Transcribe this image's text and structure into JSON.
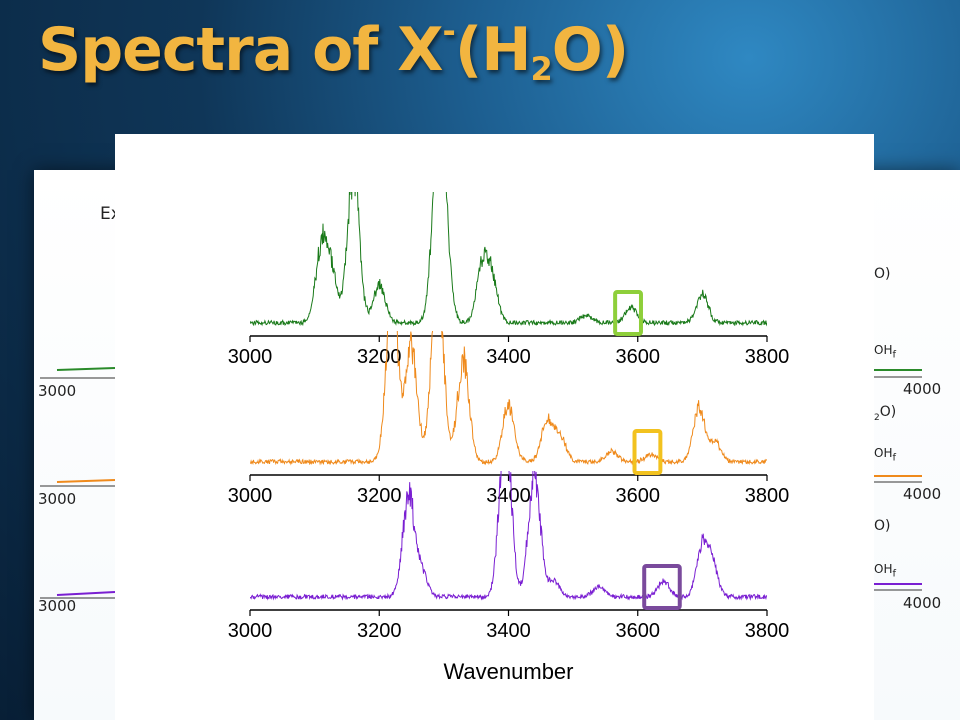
{
  "slide": {
    "title_prefix": "Spectra of X",
    "title_sup": "-",
    "title_mid": "(H",
    "title_sub": "2",
    "title_suffix": "O)"
  },
  "background": {
    "ex_text": "Ex",
    "oh_label": "OH",
    "oh_sub": "f",
    "label_o": "O)",
    "label_2o_sub": "2",
    "label_2o": "O)",
    "left_ticks": [
      "3000",
      "3000",
      "3000"
    ],
    "right_ticks": [
      "4000",
      "4000",
      "4000"
    ]
  },
  "chart_data": {
    "type": "line",
    "xlabel": "Wavenumber",
    "xlim": [
      3000,
      3800
    ],
    "xticks": [
      3000,
      3200,
      3400,
      3600,
      3800
    ],
    "grid": false,
    "panels": [
      {
        "color": "#1a7a1a",
        "box_color": "#8ecf3a",
        "highlight_x": [
          3565,
          3605
        ],
        "peaks": [
          [
            3110,
            0.55
          ],
          [
            3125,
            0.4
          ],
          [
            3160,
            1.2
          ],
          [
            3200,
            0.3
          ],
          [
            3290,
            1.15
          ],
          [
            3300,
            0.75
          ],
          [
            3360,
            0.45
          ],
          [
            3375,
            0.3
          ],
          [
            3520,
            0.06
          ],
          [
            3590,
            0.12
          ],
          [
            3700,
            0.22
          ]
        ],
        "ticks": [
          "3000",
          "3200",
          "3400",
          "3600",
          "3800"
        ]
      },
      {
        "color": "#ef8a1c",
        "box_color": "#f2c21f",
        "highlight_x": [
          3595,
          3635
        ],
        "peaks": [
          [
            3220,
            1.4
          ],
          [
            3250,
            0.9
          ],
          [
            3290,
            1.5
          ],
          [
            3330,
            0.8
          ],
          [
            3400,
            0.45
          ],
          [
            3460,
            0.32
          ],
          [
            3480,
            0.2
          ],
          [
            3560,
            0.08
          ],
          [
            3620,
            0.06
          ],
          [
            3695,
            0.42
          ],
          [
            3720,
            0.15
          ]
        ],
        "ticks": [
          "3000",
          "3200",
          "3400",
          "3600",
          "3800"
        ]
      },
      {
        "color": "#7a1fd2",
        "box_color": "#7a4a9c",
        "highlight_x": [
          3610,
          3665
        ],
        "peaks": [
          [
            3245,
            0.8
          ],
          [
            3265,
            0.2
          ],
          [
            3395,
            1.4
          ],
          [
            3440,
            1.0
          ],
          [
            3470,
            0.12
          ],
          [
            3540,
            0.08
          ],
          [
            3640,
            0.12
          ],
          [
            3700,
            0.38
          ],
          [
            3715,
            0.25
          ]
        ],
        "ticks": [
          "3000",
          "3200",
          "3400",
          "3600",
          "3800"
        ]
      }
    ]
  }
}
